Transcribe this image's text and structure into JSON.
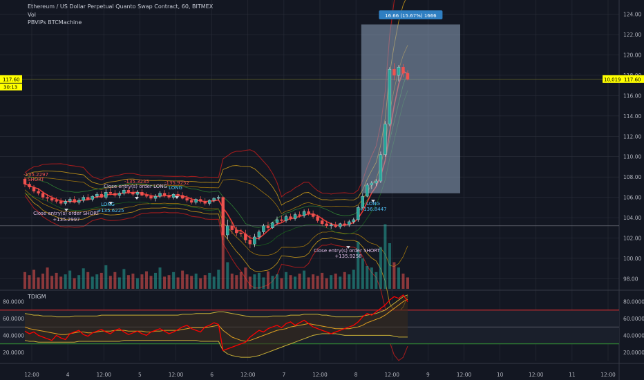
{
  "legend": {
    "symbol_line": "Ethereum / US Dollar Perpetual Quanto Swap Contract, 60, BITMEX",
    "volume": "Vol",
    "strategy": "PBVIPs BTCMachine",
    "oscillator": "TDIGM"
  },
  "colors": {
    "background": "#131722",
    "up": "#26a69a",
    "down": "#ef5350",
    "price_tag": "#ffff00",
    "measure_box": "#8fa4be",
    "measure_label": "#2f7fc2",
    "grid": "#2a2e39",
    "tdi_price": "#ff0000",
    "tdi_signal": "#e3d66b",
    "band_upper_line": "#ff0000",
    "band_lower_line": "#00c000"
  },
  "price_tags": {
    "current_price": "117.60",
    "countdown": "30:13",
    "right_box": "10,019"
  },
  "measure": {
    "label": "16.66 (15.67%) 1666"
  },
  "trade_labels": [
    {
      "text": "-135.2297",
      "type": "sell"
    },
    {
      "text": "SHORT",
      "type": "sell"
    },
    {
      "text": "Close entry(s) order SHORT",
      "type": "close"
    },
    {
      "text": "+135.2997",
      "type": "close"
    },
    {
      "text": "LONG",
      "type": "buy"
    },
    {
      "text": "+135.6225",
      "type": "buy"
    },
    {
      "text": "-135.3235",
      "type": "sell"
    },
    {
      "text": "Close entry(s) order LONG",
      "type": "close"
    },
    {
      "text": "-135.9252",
      "type": "sell"
    },
    {
      "text": "LONG",
      "type": "buy"
    },
    {
      "text": "Close entry(s) order SHORT",
      "type": "close"
    },
    {
      "text": "+135.9258",
      "type": "close"
    },
    {
      "text": "LONG",
      "type": "buy"
    },
    {
      "text": "+136.8447",
      "type": "buy"
    }
  ],
  "chart_data": [
    {
      "type": "candlestick",
      "title": "",
      "price_axis_labels": [
        "124.00",
        "122.00",
        "120.00",
        "118.00",
        "116.00",
        "114.00",
        "112.00",
        "110.00",
        "108.00",
        "106.00",
        "104.00",
        "102.00",
        "100.00",
        "98.00"
      ],
      "ylim": [
        97.0,
        125.0
      ],
      "x_tick_labels": [
        "12:00",
        "4",
        "12:00",
        "5",
        "12:00",
        "6",
        "12:00",
        "7",
        "12:00",
        "8",
        "12:00",
        "9",
        "12:00",
        "10",
        "12:00",
        "11",
        "12:00"
      ],
      "ohlc_approx": [
        [
          107.8,
          108.0,
          107.0,
          107.3
        ],
        [
          107.3,
          107.5,
          106.8,
          107.0
        ],
        [
          107.0,
          107.2,
          106.4,
          106.6
        ],
        [
          106.6,
          106.9,
          106.2,
          106.4
        ],
        [
          106.4,
          106.6,
          105.8,
          106.0
        ],
        [
          106.0,
          106.3,
          105.6,
          105.9
        ],
        [
          105.9,
          106.2,
          105.5,
          105.7
        ],
        [
          105.7,
          106.0,
          105.4,
          105.6
        ],
        [
          105.6,
          105.9,
          105.2,
          105.4
        ],
        [
          105.4,
          105.8,
          105.2,
          105.6
        ],
        [
          105.6,
          106.0,
          105.4,
          105.8
        ],
        [
          105.8,
          106.1,
          105.4,
          105.5
        ],
        [
          105.5,
          105.9,
          105.3,
          105.7
        ],
        [
          105.7,
          106.2,
          105.5,
          106.0
        ],
        [
          106.0,
          106.3,
          105.7,
          105.8
        ],
        [
          105.8,
          106.2,
          105.6,
          106.1
        ],
        [
          106.1,
          106.5,
          105.9,
          106.3
        ],
        [
          106.3,
          106.6,
          105.9,
          106.0
        ],
        [
          106.0,
          106.8,
          105.8,
          106.5
        ],
        [
          106.5,
          106.9,
          106.2,
          106.4
        ],
        [
          106.4,
          106.7,
          106.0,
          106.2
        ],
        [
          106.2,
          106.6,
          105.9,
          106.4
        ],
        [
          106.4,
          106.9,
          106.2,
          106.7
        ],
        [
          106.7,
          107.0,
          106.3,
          106.5
        ],
        [
          106.5,
          106.8,
          106.1,
          106.3
        ],
        [
          106.3,
          106.7,
          106.0,
          106.5
        ],
        [
          106.5,
          106.8,
          106.1,
          106.2
        ],
        [
          106.2,
          106.5,
          105.9,
          106.1
        ],
        [
          106.1,
          106.4,
          105.7,
          105.9
        ],
        [
          105.9,
          106.3,
          105.6,
          106.1
        ],
        [
          106.1,
          106.6,
          105.9,
          106.4
        ],
        [
          106.4,
          106.7,
          106.0,
          106.2
        ],
        [
          106.2,
          106.5,
          105.8,
          106.0
        ],
        [
          106.0,
          106.4,
          105.8,
          106.3
        ],
        [
          106.3,
          106.6,
          106.0,
          106.2
        ],
        [
          106.2,
          106.5,
          105.8,
          105.9
        ],
        [
          105.9,
          106.2,
          105.5,
          105.7
        ],
        [
          105.7,
          106.0,
          105.3,
          105.5
        ],
        [
          105.5,
          105.9,
          105.3,
          105.8
        ],
        [
          105.8,
          106.1,
          105.4,
          105.6
        ],
        [
          105.6,
          105.9,
          105.2,
          105.4
        ],
        [
          105.4,
          105.8,
          105.2,
          105.7
        ],
        [
          105.7,
          106.0,
          105.5,
          105.9
        ],
        [
          105.9,
          106.2,
          105.7,
          106.0
        ],
        [
          106.0,
          106.1,
          101.8,
          102.3
        ],
        [
          102.3,
          103.8,
          101.9,
          103.2
        ],
        [
          103.2,
          103.6,
          102.4,
          102.8
        ],
        [
          102.8,
          103.1,
          102.2,
          102.5
        ],
        [
          102.5,
          102.9,
          102.1,
          102.4
        ],
        [
          102.4,
          102.8,
          101.5,
          101.8
        ],
        [
          101.8,
          102.3,
          101.0,
          101.4
        ],
        [
          101.4,
          102.4,
          101.1,
          102.1
        ],
        [
          102.1,
          102.8,
          101.8,
          102.6
        ],
        [
          102.6,
          103.4,
          102.4,
          103.2
        ],
        [
          103.2,
          103.6,
          102.8,
          103.0
        ],
        [
          103.0,
          103.6,
          102.9,
          103.5
        ],
        [
          103.5,
          104.1,
          103.3,
          103.8
        ],
        [
          103.8,
          104.2,
          103.5,
          103.7
        ],
        [
          103.7,
          104.3,
          103.5,
          104.1
        ],
        [
          104.1,
          104.4,
          103.7,
          103.9
        ],
        [
          103.9,
          104.5,
          103.7,
          104.3
        ],
        [
          104.3,
          104.6,
          104.0,
          104.2
        ],
        [
          104.2,
          104.8,
          104.0,
          104.6
        ],
        [
          104.6,
          104.9,
          104.2,
          104.4
        ],
        [
          104.4,
          104.7,
          103.9,
          104.1
        ],
        [
          104.1,
          104.3,
          103.5,
          103.7
        ],
        [
          103.7,
          104.0,
          103.2,
          103.4
        ],
        [
          103.4,
          103.7,
          103.0,
          103.2
        ],
        [
          103.2,
          103.5,
          102.9,
          103.3
        ],
        [
          103.3,
          103.6,
          103.0,
          103.1
        ],
        [
          103.1,
          103.5,
          102.9,
          103.4
        ],
        [
          103.4,
          103.7,
          103.1,
          103.3
        ],
        [
          103.3,
          103.8,
          103.1,
          103.6
        ],
        [
          103.6,
          104.0,
          103.4,
          103.8
        ],
        [
          103.8,
          105.2,
          103.6,
          105.0
        ],
        [
          105.0,
          106.4,
          104.8,
          106.1
        ],
        [
          106.1,
          107.4,
          106.0,
          107.2
        ],
        [
          107.2,
          107.6,
          106.8,
          107.4
        ],
        [
          107.4,
          107.8,
          107.1,
          107.6
        ],
        [
          107.6,
          110.5,
          107.4,
          110.2
        ],
        [
          110.2,
          113.5,
          110.0,
          113.2
        ],
        [
          113.2,
          118.8,
          113.0,
          118.6
        ],
        [
          118.6,
          119.2,
          117.5,
          118.0
        ],
        [
          118.0,
          119.0,
          117.4,
          118.8
        ],
        [
          118.8,
          119.1,
          117.8,
          118.2
        ],
        [
          118.2,
          118.5,
          117.5,
          117.6
        ]
      ]
    },
    {
      "type": "bar",
      "title": "",
      "series_name": "Vol",
      "values_relative": [
        0.22,
        0.18,
        0.25,
        0.15,
        0.2,
        0.28,
        0.17,
        0.21,
        0.16,
        0.19,
        0.24,
        0.14,
        0.18,
        0.27,
        0.22,
        0.16,
        0.19,
        0.21,
        0.31,
        0.17,
        0.22,
        0.15,
        0.26,
        0.18,
        0.2,
        0.14,
        0.19,
        0.23,
        0.17,
        0.21,
        0.28,
        0.16,
        0.18,
        0.22,
        0.15,
        0.24,
        0.19,
        0.17,
        0.2,
        0.14,
        0.18,
        0.21,
        0.16,
        0.25,
        1.0,
        0.35,
        0.2,
        0.18,
        0.22,
        0.28,
        0.16,
        0.19,
        0.21,
        0.15,
        0.23,
        0.17,
        0.19,
        0.14,
        0.22,
        0.18,
        0.16,
        0.2,
        0.24,
        0.15,
        0.19,
        0.17,
        0.21,
        0.14,
        0.18,
        0.2,
        0.16,
        0.22,
        0.19,
        0.25,
        0.62,
        0.4,
        0.3,
        0.28,
        0.22,
        0.55,
        0.85,
        0.6,
        0.35,
        0.28,
        0.2,
        0.15
      ]
    },
    {
      "type": "line",
      "title": "",
      "series_name": "TDIGM",
      "y_axis_labels": [
        "80.0000",
        "60.0000",
        "40.0000",
        "20.0000"
      ],
      "ylim": [
        10,
        92
      ],
      "levels": [
        70,
        50,
        30
      ],
      "price_line": [
        45,
        42,
        44,
        40,
        38,
        36,
        34,
        40,
        37,
        35,
        42,
        44,
        46,
        41,
        39,
        43,
        45,
        47,
        44,
        42,
        46,
        48,
        44,
        41,
        43,
        45,
        42,
        40,
        44,
        46,
        48,
        45,
        42,
        44,
        47,
        50,
        52,
        48,
        46,
        44,
        50,
        52,
        55,
        53,
        22,
        24,
        26,
        28,
        30,
        32,
        38,
        42,
        46,
        44,
        48,
        50,
        52,
        49,
        54,
        56,
        52,
        55,
        58,
        54,
        50,
        48,
        46,
        44,
        42,
        44,
        46,
        48,
        50,
        52,
        56,
        62,
        66,
        64,
        68,
        72,
        76,
        82,
        86,
        84,
        88,
        80
      ],
      "signal_line": [
        50,
        48,
        47,
        46,
        45,
        44,
        43,
        42,
        41,
        41,
        42,
        43,
        44,
        44,
        43,
        43,
        44,
        45,
        45,
        45,
        46,
        46,
        46,
        45,
        45,
        45,
        45,
        44,
        44,
        45,
        45,
        46,
        46,
        46,
        46,
        47,
        48,
        49,
        49,
        49,
        49,
        50,
        51,
        52,
        46,
        42,
        38,
        36,
        34,
        33,
        34,
        36,
        38,
        40,
        42,
        44,
        46,
        47,
        48,
        50,
        51,
        52,
        53,
        54,
        53,
        52,
        51,
        50,
        49,
        48,
        48,
        48,
        48,
        49,
        50,
        52,
        55,
        57,
        59,
        61,
        64,
        68,
        72,
        76,
        80,
        83
      ],
      "upper_band": [
        66,
        65,
        64,
        64,
        63,
        63,
        63,
        62,
        62,
        62,
        62,
        63,
        63,
        63,
        63,
        63,
        63,
        64,
        64,
        64,
        64,
        64,
        64,
        64,
        64,
        64,
        64,
        64,
        64,
        64,
        64,
        64,
        64,
        64,
        64,
        65,
        65,
        65,
        66,
        66,
        66,
        66,
        67,
        68,
        68,
        67,
        66,
        65,
        64,
        63,
        62,
        62,
        62,
        62,
        62,
        63,
        63,
        63,
        63,
        64,
        64,
        64,
        65,
        65,
        65,
        65,
        64,
        64,
        63,
        62,
        62,
        62,
        62,
        62,
        62,
        63,
        64,
        65,
        66,
        68,
        70,
        74,
        78,
        82,
        86,
        88
      ],
      "lower_band": [
        34,
        33,
        33,
        32,
        32,
        32,
        32,
        32,
        32,
        32,
        32,
        32,
        33,
        33,
        33,
        33,
        33,
        33,
        33,
        33,
        33,
        33,
        34,
        34,
        34,
        34,
        34,
        34,
        34,
        34,
        34,
        34,
        34,
        34,
        34,
        34,
        34,
        34,
        34,
        33,
        33,
        33,
        33,
        33,
        22,
        18,
        16,
        15,
        14,
        14,
        14,
        15,
        16,
        18,
        20,
        22,
        24,
        26,
        28,
        30,
        32,
        34,
        36,
        38,
        40,
        41,
        42,
        42,
        42,
        42,
        41,
        40,
        40,
        40,
        40,
        40,
        40,
        40,
        40,
        40,
        40,
        40,
        39,
        38,
        38,
        38
      ]
    }
  ]
}
